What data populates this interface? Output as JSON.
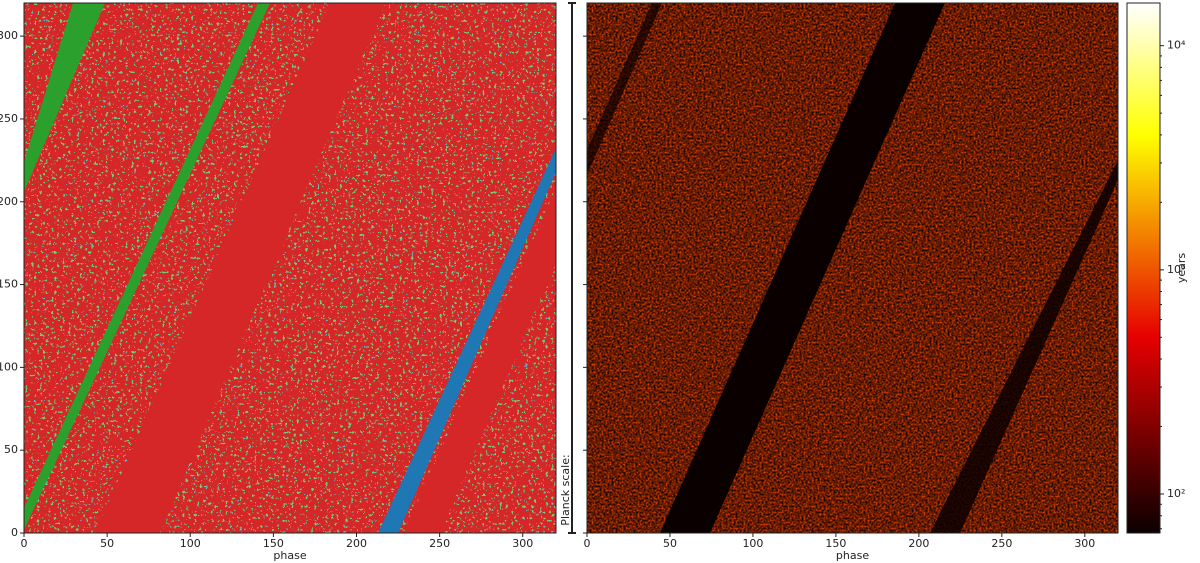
{
  "chart_data": [
    {
      "type": "heatmap",
      "xlabel": "phase",
      "xlim": [
        0,
        320
      ],
      "ylim": [
        0,
        320
      ],
      "xticks": [
        0,
        50,
        100,
        150,
        200,
        250,
        300
      ],
      "yticks": [
        0,
        50,
        100,
        150,
        200,
        250,
        300
      ],
      "show_ytick_labels": true,
      "palette": "categorical"
    },
    {
      "type": "heatmap",
      "xlabel": "phase",
      "side_label": "Planck scale:",
      "xlim": [
        0,
        320
      ],
      "ylim": [
        0,
        320
      ],
      "xticks": [
        0,
        50,
        100,
        150,
        200,
        250,
        300
      ],
      "yticks": [
        0,
        50,
        100,
        150,
        200,
        250,
        300
      ],
      "show_ytick_labels": false,
      "palette": "hot",
      "colorbar": {
        "label": "years",
        "scale": "log",
        "lim": [
          67,
          15500
        ],
        "ticks": [
          {
            "value": 100,
            "label": "10²"
          },
          {
            "value": 1000,
            "label": "10³"
          },
          {
            "value": 10000,
            "label": "10⁴"
          }
        ]
      }
    }
  ]
}
